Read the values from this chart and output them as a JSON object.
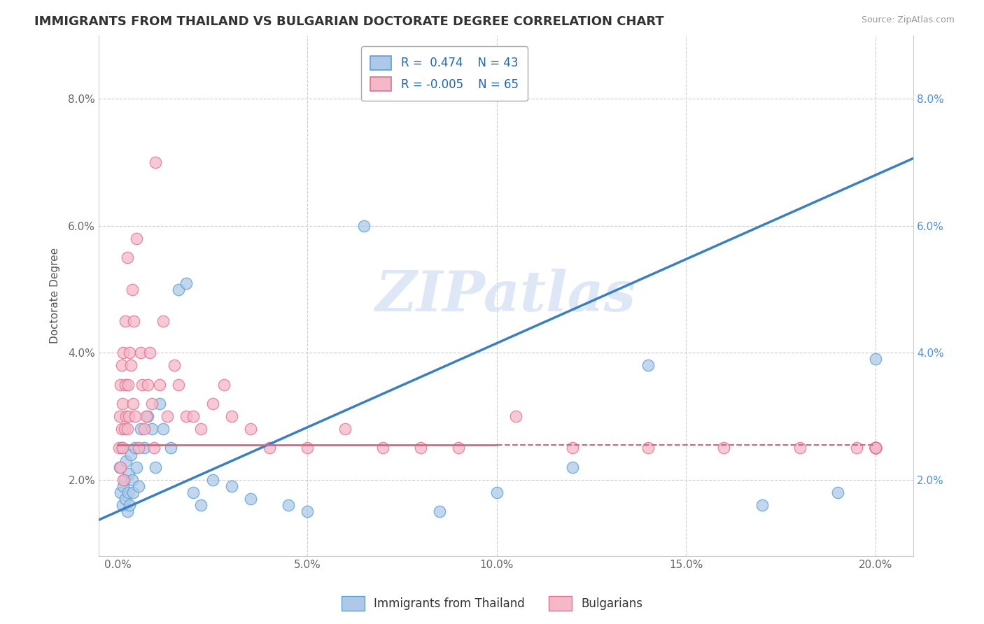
{
  "title": "IMMIGRANTS FROM THAILAND VS BULGARIAN DOCTORATE DEGREE CORRELATION CHART",
  "source": "Source: ZipAtlas.com",
  "ylabel": "Doctorate Degree",
  "x_ticks": [
    0.0,
    5.0,
    10.0,
    15.0,
    20.0
  ],
  "x_tick_labels": [
    "0.0%",
    "5.0%",
    "10.0%",
    "15.0%",
    "20.0%"
  ],
  "y_ticks": [
    2.0,
    4.0,
    6.0,
    8.0
  ],
  "y_tick_labels": [
    "2.0%",
    "4.0%",
    "6.0%",
    "8.0%"
  ],
  "xlim": [
    -0.5,
    21.0
  ],
  "ylim": [
    0.8,
    9.0
  ],
  "legend_r1": "R =  0.474",
  "legend_n1": "N = 43",
  "legend_r2": "R = -0.005",
  "legend_n2": "N = 65",
  "watermark": "ZIPatlas",
  "blue_fill": "#aec9e8",
  "blue_edge": "#5a9fd4",
  "pink_fill": "#f5b8c8",
  "pink_edge": "#e07090",
  "blue_line_color": "#3a7fc1",
  "pink_line_color": "#e06080",
  "blue_line_start_y": 1.5,
  "blue_line_end_y": 6.8,
  "pink_line_y": 2.55,
  "title_fontsize": 13,
  "axis_fontsize": 11,
  "tick_fontsize": 11,
  "legend_fontsize": 12,
  "thailand_x": [
    0.05,
    0.08,
    0.1,
    0.12,
    0.15,
    0.18,
    0.2,
    0.22,
    0.25,
    0.28,
    0.3,
    0.32,
    0.35,
    0.38,
    0.4,
    0.45,
    0.5,
    0.55,
    0.6,
    0.7,
    0.8,
    0.9,
    1.0,
    1.1,
    1.2,
    1.4,
    1.6,
    1.8,
    2.0,
    2.2,
    2.5,
    3.0,
    3.5,
    4.5,
    5.0,
    6.5,
    8.5,
    10.0,
    12.0,
    14.0,
    17.0,
    19.0,
    20.0
  ],
  "thailand_y": [
    2.2,
    1.8,
    2.5,
    1.6,
    1.9,
    2.0,
    1.7,
    2.3,
    1.5,
    1.8,
    2.1,
    1.6,
    2.4,
    2.0,
    1.8,
    2.5,
    2.2,
    1.9,
    2.8,
    2.5,
    3.0,
    2.8,
    2.2,
    3.2,
    2.8,
    2.5,
    5.0,
    5.1,
    1.8,
    1.6,
    2.0,
    1.9,
    1.7,
    1.6,
    1.5,
    6.0,
    1.5,
    1.8,
    2.2,
    3.8,
    1.6,
    1.8,
    3.9
  ],
  "bulgarian_x": [
    0.03,
    0.05,
    0.07,
    0.08,
    0.1,
    0.1,
    0.12,
    0.13,
    0.15,
    0.15,
    0.18,
    0.2,
    0.2,
    0.22,
    0.25,
    0.25,
    0.28,
    0.3,
    0.32,
    0.35,
    0.38,
    0.4,
    0.42,
    0.45,
    0.5,
    0.55,
    0.6,
    0.65,
    0.7,
    0.75,
    0.8,
    0.85,
    0.9,
    0.95,
    1.0,
    1.1,
    1.2,
    1.3,
    1.5,
    1.6,
    1.8,
    2.0,
    2.2,
    2.5,
    2.8,
    3.0,
    3.5,
    4.0,
    5.0,
    6.0,
    7.0,
    8.0,
    9.0,
    10.5,
    12.0,
    14.0,
    16.0,
    18.0,
    19.5,
    20.0,
    20.0,
    20.0,
    20.0,
    20.0,
    20.0
  ],
  "bulgarian_y": [
    2.5,
    3.0,
    2.2,
    3.5,
    2.8,
    3.8,
    2.5,
    3.2,
    2.0,
    4.0,
    2.8,
    3.5,
    4.5,
    3.0,
    5.5,
    2.8,
    3.5,
    3.0,
    4.0,
    3.8,
    5.0,
    3.2,
    4.5,
    3.0,
    5.8,
    2.5,
    4.0,
    3.5,
    2.8,
    3.0,
    3.5,
    4.0,
    3.2,
    2.5,
    7.0,
    3.5,
    4.5,
    3.0,
    3.8,
    3.5,
    3.0,
    3.0,
    2.8,
    3.2,
    3.5,
    3.0,
    2.8,
    2.5,
    2.5,
    2.8,
    2.5,
    2.5,
    2.5,
    3.0,
    2.5,
    2.5,
    2.5,
    2.5,
    2.5,
    2.5,
    2.5,
    2.5,
    2.5,
    2.5,
    2.5
  ]
}
